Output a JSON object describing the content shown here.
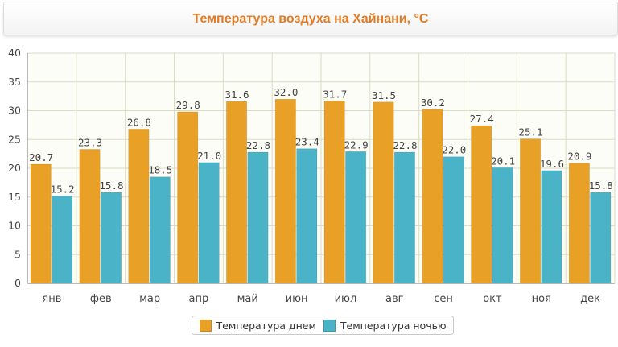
{
  "colors": {
    "day": "#e9a026",
    "night": "#4ab3c8",
    "title": "#e07b26"
  },
  "chart_data": {
    "type": "bar",
    "title": "Температура воздуха на Хайнани, °С",
    "categories": [
      "янв",
      "фев",
      "мар",
      "апр",
      "май",
      "июн",
      "июл",
      "авг",
      "сен",
      "окт",
      "ноя",
      "дек"
    ],
    "series": [
      {
        "name": "Температура днем",
        "values": [
          20.7,
          23.3,
          26.8,
          29.8,
          31.6,
          32.0,
          31.7,
          31.5,
          30.2,
          27.4,
          25.1,
          20.9
        ]
      },
      {
        "name": "Температура ночью",
        "values": [
          15.2,
          15.8,
          18.5,
          21.0,
          22.8,
          23.4,
          22.9,
          22.8,
          22.0,
          20.1,
          19.6,
          15.8
        ]
      }
    ],
    "ylim": [
      0,
      40
    ],
    "yticks": [
      0,
      5,
      10,
      15,
      20,
      25,
      30,
      35,
      40
    ],
    "grid": true,
    "legend_position": "bottom"
  }
}
